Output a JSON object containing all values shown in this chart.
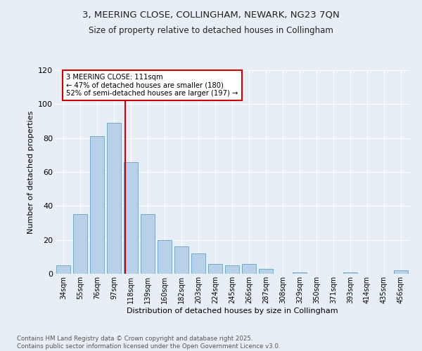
{
  "title1": "3, MEERING CLOSE, COLLINGHAM, NEWARK, NG23 7QN",
  "title2": "Size of property relative to detached houses in Collingham",
  "xlabel": "Distribution of detached houses by size in Collingham",
  "ylabel": "Number of detached properties",
  "categories": [
    "34sqm",
    "55sqm",
    "76sqm",
    "97sqm",
    "118sqm",
    "139sqm",
    "160sqm",
    "182sqm",
    "203sqm",
    "224sqm",
    "245sqm",
    "266sqm",
    "287sqm",
    "308sqm",
    "329sqm",
    "350sqm",
    "371sqm",
    "393sqm",
    "414sqm",
    "435sqm",
    "456sqm"
  ],
  "values": [
    5,
    35,
    81,
    89,
    66,
    35,
    20,
    16,
    12,
    6,
    5,
    6,
    3,
    0,
    1,
    0,
    0,
    1,
    0,
    0,
    2
  ],
  "bar_color": "#b8d0e8",
  "bar_edge_color": "#6a9fc0",
  "vline_color": "#cc0000",
  "annotation_text": "3 MEERING CLOSE: 111sqm\n← 47% of detached houses are smaller (180)\n52% of semi-detached houses are larger (197) →",
  "annotation_box_color": "#ffffff",
  "annotation_box_edge": "#cc0000",
  "ylim": [
    0,
    120
  ],
  "yticks": [
    0,
    20,
    40,
    60,
    80,
    100,
    120
  ],
  "background_color": "#e8eef5",
  "footer1": "Contains HM Land Registry data © Crown copyright and database right 2025.",
  "footer2": "Contains public sector information licensed under the Open Government Licence v3.0."
}
